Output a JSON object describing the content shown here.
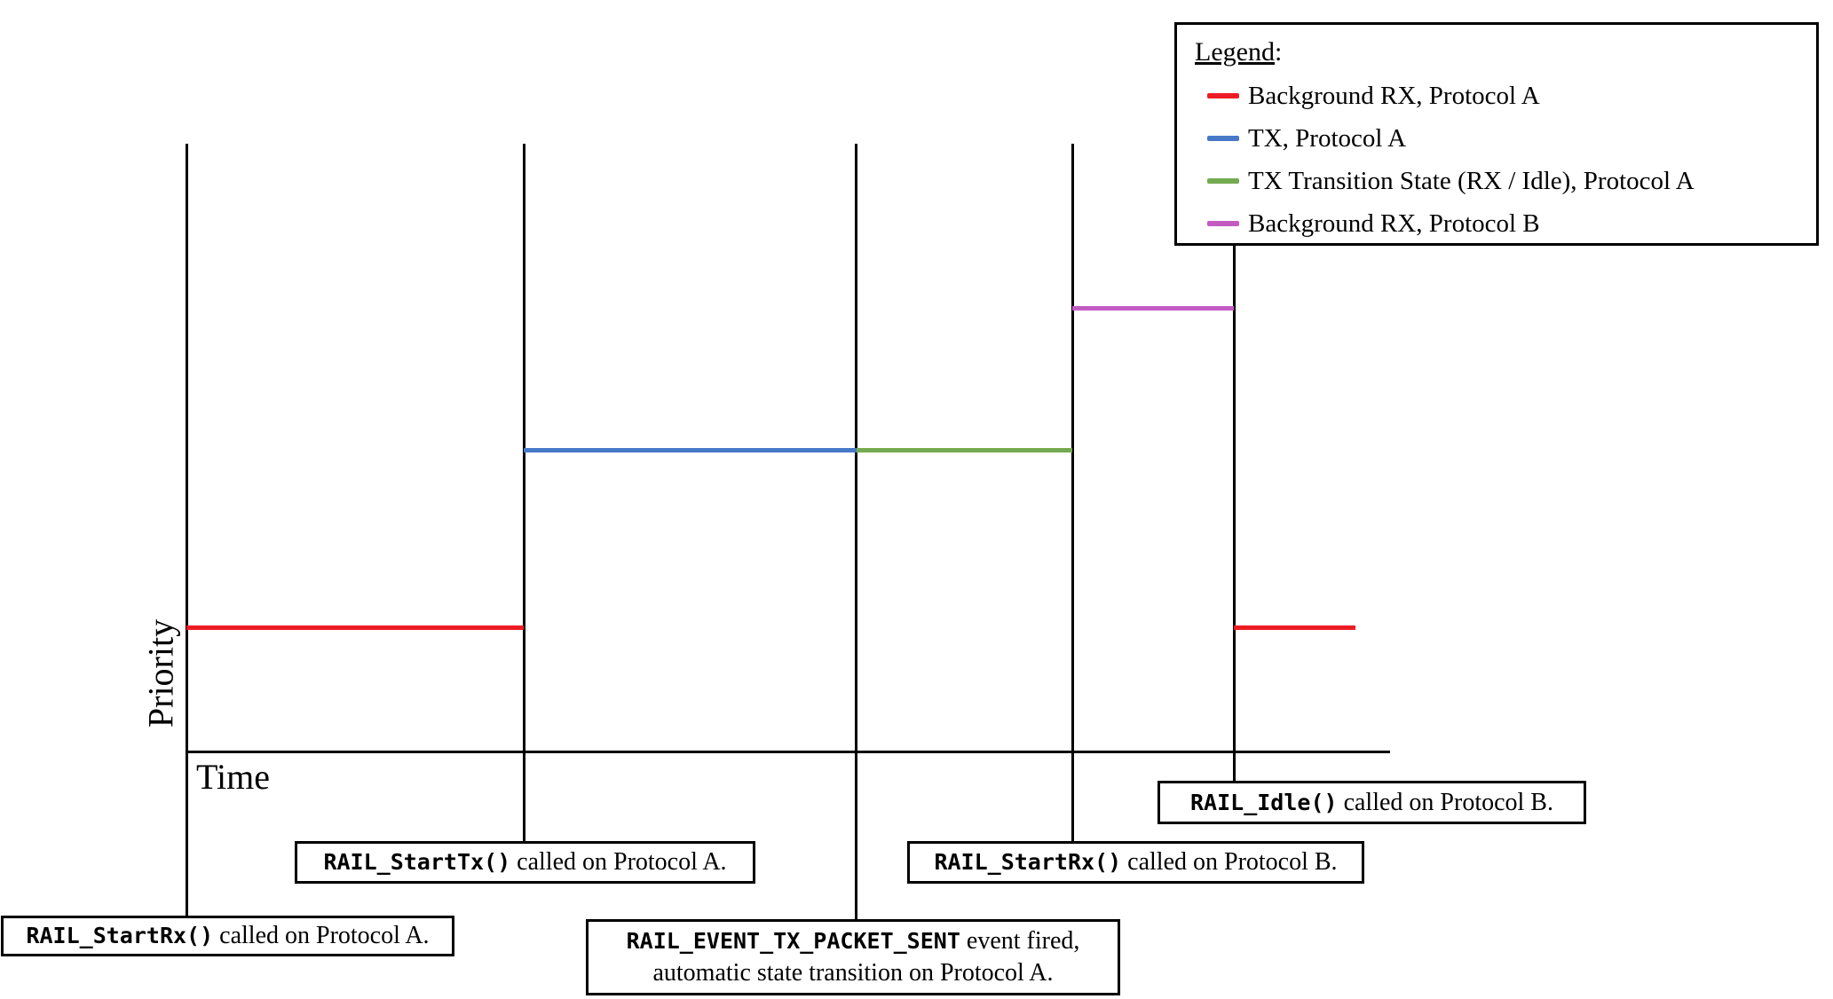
{
  "axes": {
    "x_label": "Time",
    "y_label": "Priority"
  },
  "legend": {
    "title": "Legend",
    "title_suffix": ":",
    "items": [
      {
        "label": "Background RX, Protocol A",
        "color": "#ED1C24"
      },
      {
        "label": "TX, Protocol A",
        "color": "#4878C8"
      },
      {
        "label": "TX Transition State (RX / Idle), Protocol A",
        "color": "#74AA50"
      },
      {
        "label": "Background RX, Protocol B",
        "color": "#C35BC3"
      }
    ]
  },
  "segments": [
    {
      "name": "Background RX, Protocol A (before TX)",
      "color": "#ED1C24",
      "priority_level": 1
    },
    {
      "name": "TX, Protocol A",
      "color": "#4878C8",
      "priority_level": 2
    },
    {
      "name": "TX Transition State (RX / Idle), Protocol A",
      "color": "#74AA50",
      "priority_level": 2
    },
    {
      "name": "Background RX, Protocol B",
      "color": "#C35BC3",
      "priority_level": 3
    },
    {
      "name": "Background RX, Protocol A (after Idle)",
      "color": "#ED1C24",
      "priority_level": 1
    }
  ],
  "annotations": [
    {
      "code": "RAIL_StartRx()",
      "text": " called on Protocol A."
    },
    {
      "code": "RAIL_StartTx()",
      "text": " called on Protocol A."
    },
    {
      "code": "RAIL_EVENT_TX_PACKET_SENT",
      "text": " event fired,",
      "text2": "automatic state transition on Protocol A."
    },
    {
      "code": "RAIL_StartRx()",
      "text": " called on Protocol B."
    },
    {
      "code": "RAIL_Idle()",
      "text": " called on Protocol B."
    }
  ]
}
